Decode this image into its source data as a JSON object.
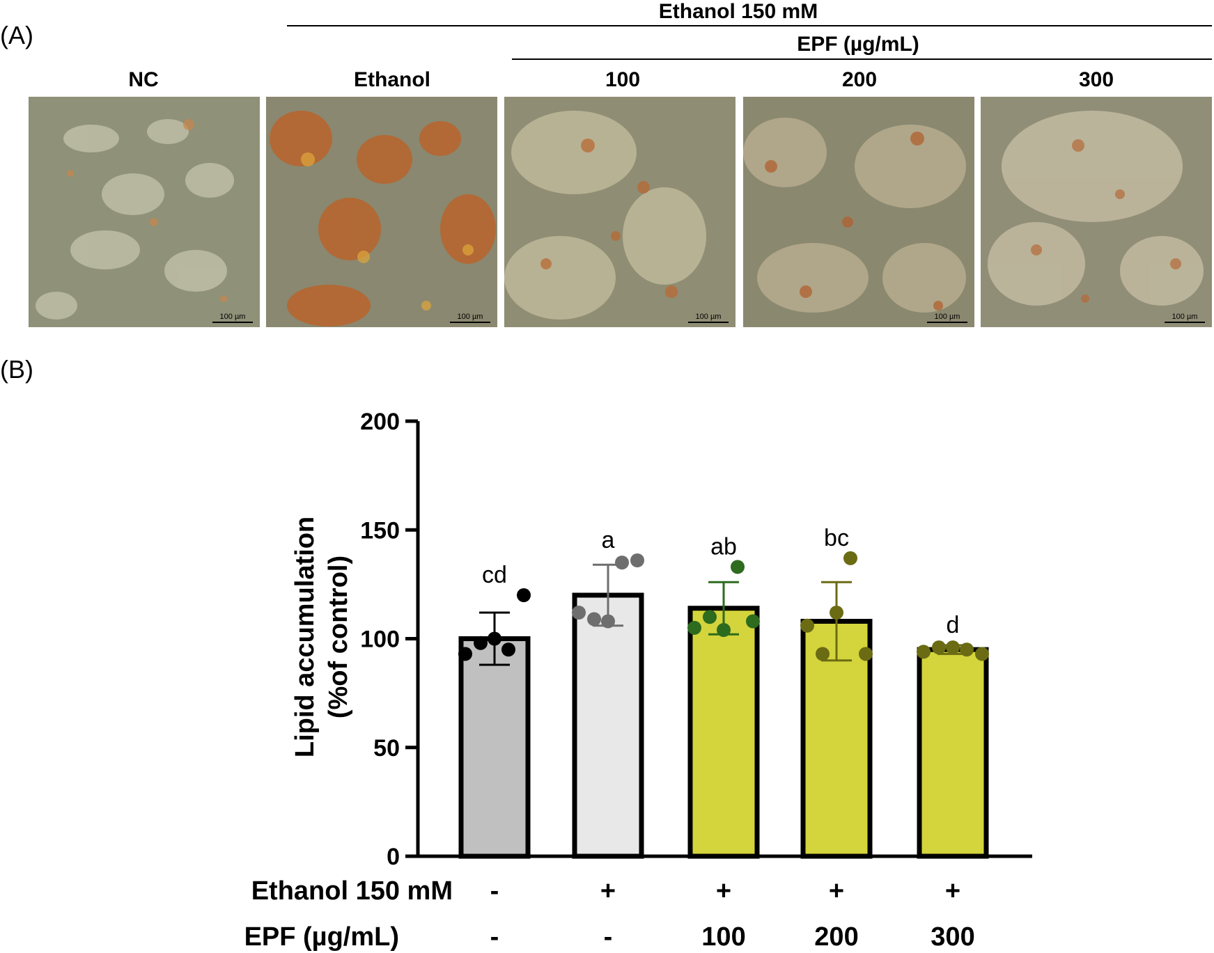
{
  "panel_a": {
    "label": "(A)",
    "ethanol_header": "Ethanol 150 mM",
    "epf_header": "EPF (µg/mL)",
    "images": [
      {
        "label": "NC",
        "scale": "100 µm",
        "style": "control"
      },
      {
        "label": "Ethanol",
        "scale": "100 µm",
        "style": "ethanol"
      },
      {
        "label": "100",
        "scale": "100 µm",
        "style": "epf"
      },
      {
        "label": "200",
        "scale": "100 µm",
        "style": "epf"
      },
      {
        "label": "300",
        "scale": "100 µm",
        "style": "epf"
      }
    ]
  },
  "panel_b": {
    "label": "(B)",
    "row1_label": "Ethanol 150 mM",
    "row2_label": "EPF (µg/mL)",
    "row1_values": [
      "-",
      "+",
      "+",
      "+",
      "+"
    ],
    "row2_values": [
      "-",
      "-",
      "100",
      "200",
      "300"
    ]
  },
  "chart_data": {
    "type": "bar",
    "ylabel_line1": "Lipid accumulation",
    "ylabel_line2": "(%of control)",
    "ylim": [
      0,
      200
    ],
    "yticks": [
      0,
      50,
      100,
      150,
      200
    ],
    "groups": [
      {
        "mean": 100,
        "sd": 12,
        "letter": "cd",
        "fill": "#c0c0c0",
        "dot": "#000000",
        "points": [
          93,
          98,
          100,
          95,
          120
        ]
      },
      {
        "mean": 120,
        "sd": 14,
        "letter": "a",
        "fill": "#e8e8e8",
        "dot": "#6e6e6e",
        "points": [
          112,
          109,
          108,
          135,
          136
        ]
      },
      {
        "mean": 114,
        "sd": 12,
        "letter": "ab",
        "fill": "#d4d43c",
        "dot": "#2d6b1e",
        "points": [
          105,
          110,
          104,
          133,
          108
        ]
      },
      {
        "mean": 108,
        "sd": 18,
        "letter": "bc",
        "fill": "#d4d43c",
        "dot": "#6b6b14",
        "points": [
          106,
          93,
          112,
          137,
          93
        ]
      },
      {
        "mean": 95,
        "sd": 2,
        "letter": "d",
        "fill": "#d4d43c",
        "dot": "#6b6b14",
        "points": [
          94,
          96,
          96,
          95,
          93
        ]
      }
    ]
  }
}
